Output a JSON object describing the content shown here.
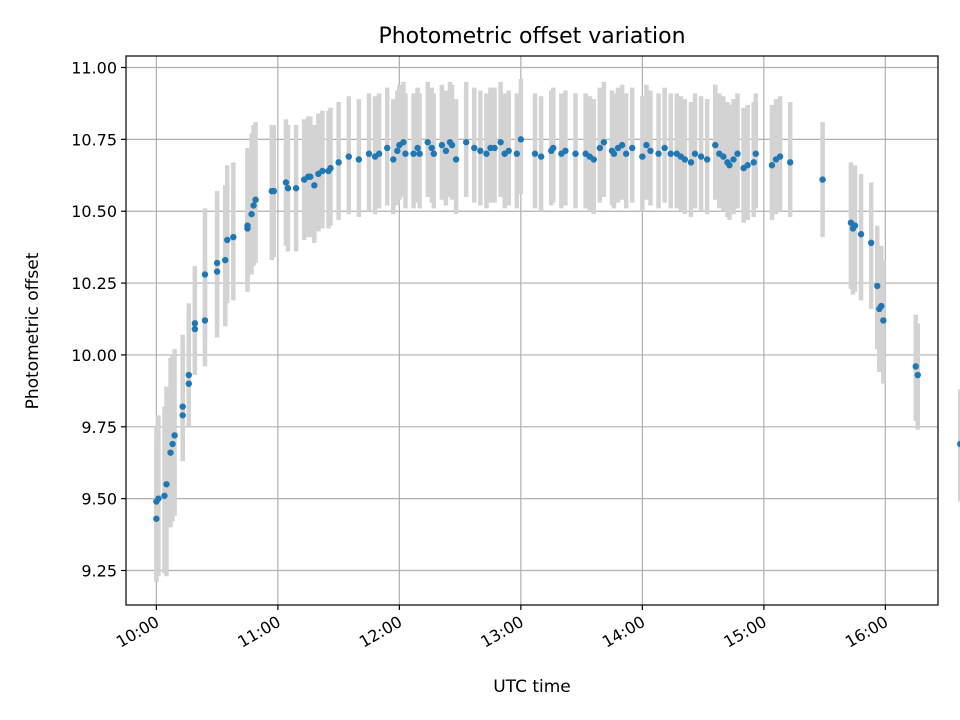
{
  "chart_data": {
    "type": "scatter",
    "title": "Photometric offset variation",
    "xlabel": "UTC time",
    "ylabel": "Photometric offset",
    "x_ticks": [
      "10:00",
      "11:00",
      "12:00",
      "13:00",
      "14:00",
      "15:00",
      "16:00"
    ],
    "y_ticks": [
      "9.25",
      "9.50",
      "9.75",
      "10.00",
      "10.25",
      "10.50",
      "10.75",
      "11.00"
    ],
    "xlim": [
      "09:45",
      "16:26"
    ],
    "ylim": [
      9.13,
      11.04
    ],
    "grid": true,
    "colors": {
      "points": "#1f77b4",
      "error_bars": "#d3d3d3"
    },
    "series": [
      {
        "x": [
          "10:00",
          "10:00",
          "10:01",
          "10:04",
          "10:05",
          "10:07",
          "10:08",
          "10:09",
          "10:13",
          "10:13",
          "10:16",
          "10:16",
          "10:19",
          "10:19",
          "10:24",
          "10:24",
          "10:30",
          "10:30",
          "10:34",
          "10:35",
          "10:38",
          "10:45",
          "10:45",
          "10:47",
          "10:48",
          "10:49",
          "10:57",
          "10:58",
          "11:04",
          "11:05",
          "11:09",
          "11:13",
          "11:15",
          "11:16",
          "11:18",
          "11:20",
          "11:22",
          "11:25",
          "11:26",
          "11:30",
          "11:35",
          "11:40",
          "11:45",
          "11:48",
          "11:50",
          "11:54",
          "11:57",
          "11:59",
          "12:00",
          "12:02",
          "12:03",
          "12:07",
          "12:09",
          "12:10",
          "12:14",
          "12:16",
          "12:17",
          "12:21",
          "12:23",
          "12:25",
          "12:26",
          "12:28",
          "12:33",
          "12:37",
          "12:40",
          "12:43",
          "12:45",
          "12:47",
          "12:50",
          "12:52",
          "12:54",
          "12:58",
          "13:00",
          "13:07",
          "13:10",
          "13:15",
          "13:16",
          "13:20",
          "13:22",
          "13:27",
          "13:32",
          "13:34",
          "13:36",
          "13:39",
          "13:41",
          "13:45",
          "13:46",
          "13:48",
          "13:50",
          "13:52",
          "13:55",
          "14:00",
          "14:02",
          "14:04",
          "14:08",
          "14:11",
          "14:14",
          "14:17",
          "14:19",
          "14:21",
          "14:24",
          "14:26",
          "14:29",
          "14:32",
          "14:36",
          "14:38",
          "14:40",
          "14:42",
          "14:43",
          "14:45",
          "14:47",
          "14:50",
          "14:52",
          "14:55",
          "14:56",
          "15:04",
          "15:06",
          "15:08",
          "15:13",
          "15:29",
          "15:43",
          "15:44",
          "15:45",
          "15:48",
          "15:53",
          "15:56",
          "15:57",
          "15:58",
          "15:59",
          "16:15",
          "16:16",
          "16:37"
        ],
        "y": [
          9.43,
          9.49,
          9.5,
          9.51,
          9.55,
          9.66,
          9.69,
          9.72,
          9.79,
          9.82,
          9.9,
          9.93,
          10.09,
          10.11,
          10.12,
          10.28,
          10.29,
          10.32,
          10.33,
          10.4,
          10.41,
          10.44,
          10.45,
          10.49,
          10.52,
          10.54,
          10.57,
          10.57,
          10.6,
          10.58,
          10.58,
          10.61,
          10.62,
          10.62,
          10.59,
          10.63,
          10.64,
          10.64,
          10.65,
          10.67,
          10.69,
          10.68,
          10.7,
          10.69,
          10.7,
          10.72,
          10.68,
          10.71,
          10.73,
          10.74,
          10.7,
          10.7,
          10.72,
          10.7,
          10.74,
          10.72,
          10.7,
          10.73,
          10.71,
          10.74,
          10.73,
          10.68,
          10.74,
          10.72,
          10.71,
          10.7,
          10.72,
          10.72,
          10.74,
          10.7,
          10.71,
          10.7,
          10.75,
          10.7,
          10.69,
          10.71,
          10.72,
          10.7,
          10.71,
          10.7,
          10.7,
          10.69,
          10.68,
          10.72,
          10.74,
          10.71,
          10.7,
          10.72,
          10.73,
          10.7,
          10.72,
          10.69,
          10.73,
          10.71,
          10.7,
          10.72,
          10.7,
          10.7,
          10.69,
          10.68,
          10.67,
          10.7,
          10.69,
          10.68,
          10.73,
          10.7,
          10.69,
          10.67,
          10.66,
          10.68,
          10.7,
          10.65,
          10.66,
          10.67,
          10.7,
          10.66,
          10.68,
          10.69,
          10.67,
          10.61,
          10.46,
          10.44,
          10.45,
          10.42,
          10.39,
          10.24,
          10.16,
          10.17,
          10.12,
          9.96,
          9.93,
          9.69
        ],
        "error_low": [
          9.21,
          9.27,
          9.23,
          9.24,
          9.23,
          9.4,
          9.42,
          9.44,
          9.63,
          9.66,
          9.75,
          9.76,
          9.93,
          9.95,
          9.96,
          10.05,
          10.06,
          10.09,
          10.1,
          10.18,
          10.19,
          10.22,
          10.24,
          10.28,
          10.31,
          10.32,
          10.33,
          10.34,
          10.38,
          10.36,
          10.36,
          10.4,
          10.41,
          10.41,
          10.39,
          10.43,
          10.44,
          10.44,
          10.45,
          10.47,
          10.49,
          10.48,
          10.5,
          10.49,
          10.51,
          10.52,
          10.49,
          10.52,
          10.54,
          10.55,
          10.51,
          10.51,
          10.53,
          10.51,
          10.55,
          10.53,
          10.51,
          10.54,
          10.52,
          10.55,
          10.54,
          10.49,
          10.55,
          10.53,
          10.52,
          10.51,
          10.53,
          10.53,
          10.55,
          10.51,
          10.52,
          10.51,
          10.56,
          10.51,
          10.5,
          10.52,
          10.53,
          10.51,
          10.52,
          10.51,
          10.51,
          10.5,
          10.49,
          10.53,
          10.55,
          10.52,
          10.51,
          10.53,
          10.54,
          10.51,
          10.53,
          10.5,
          10.54,
          10.52,
          10.51,
          10.53,
          10.51,
          10.51,
          10.5,
          10.49,
          10.48,
          10.51,
          10.5,
          10.49,
          10.54,
          10.51,
          10.5,
          10.48,
          10.47,
          10.49,
          10.51,
          10.46,
          10.47,
          10.48,
          10.51,
          10.47,
          10.49,
          10.5,
          10.48,
          10.41,
          10.23,
          10.21,
          10.22,
          10.19,
          10.16,
          10.02,
          9.94,
          9.95,
          9.9,
          9.77,
          9.74,
          9.49
        ],
        "error_high": [
          9.69,
          9.75,
          9.79,
          9.82,
          9.89,
          9.99,
          10.0,
          10.02,
          10.04,
          10.07,
          10.16,
          10.18,
          10.29,
          10.31,
          10.33,
          10.51,
          10.53,
          10.57,
          10.59,
          10.66,
          10.67,
          10.7,
          10.72,
          10.77,
          10.8,
          10.81,
          10.8,
          10.8,
          10.82,
          10.8,
          10.8,
          10.82,
          10.83,
          10.83,
          10.8,
          10.84,
          10.85,
          10.85,
          10.86,
          10.88,
          10.9,
          10.89,
          10.91,
          10.9,
          10.91,
          10.93,
          10.89,
          10.92,
          10.94,
          10.95,
          10.91,
          10.91,
          10.93,
          10.91,
          10.95,
          10.93,
          10.91,
          10.94,
          10.92,
          10.95,
          10.94,
          10.89,
          10.95,
          10.93,
          10.92,
          10.91,
          10.93,
          10.93,
          10.95,
          10.91,
          10.92,
          10.91,
          10.96,
          10.91,
          10.9,
          10.92,
          10.93,
          10.91,
          10.92,
          10.91,
          10.91,
          10.9,
          10.89,
          10.93,
          10.95,
          10.92,
          10.91,
          10.93,
          10.94,
          10.91,
          10.93,
          10.9,
          10.94,
          10.92,
          10.91,
          10.93,
          10.91,
          10.91,
          10.9,
          10.89,
          10.88,
          10.91,
          10.9,
          10.89,
          10.94,
          10.91,
          10.9,
          10.88,
          10.87,
          10.89,
          10.91,
          10.86,
          10.87,
          10.88,
          10.91,
          10.87,
          10.89,
          10.9,
          10.88,
          10.81,
          10.67,
          10.65,
          10.66,
          10.63,
          10.6,
          10.45,
          10.37,
          10.38,
          10.33,
          10.14,
          10.11,
          9.88
        ]
      }
    ]
  }
}
